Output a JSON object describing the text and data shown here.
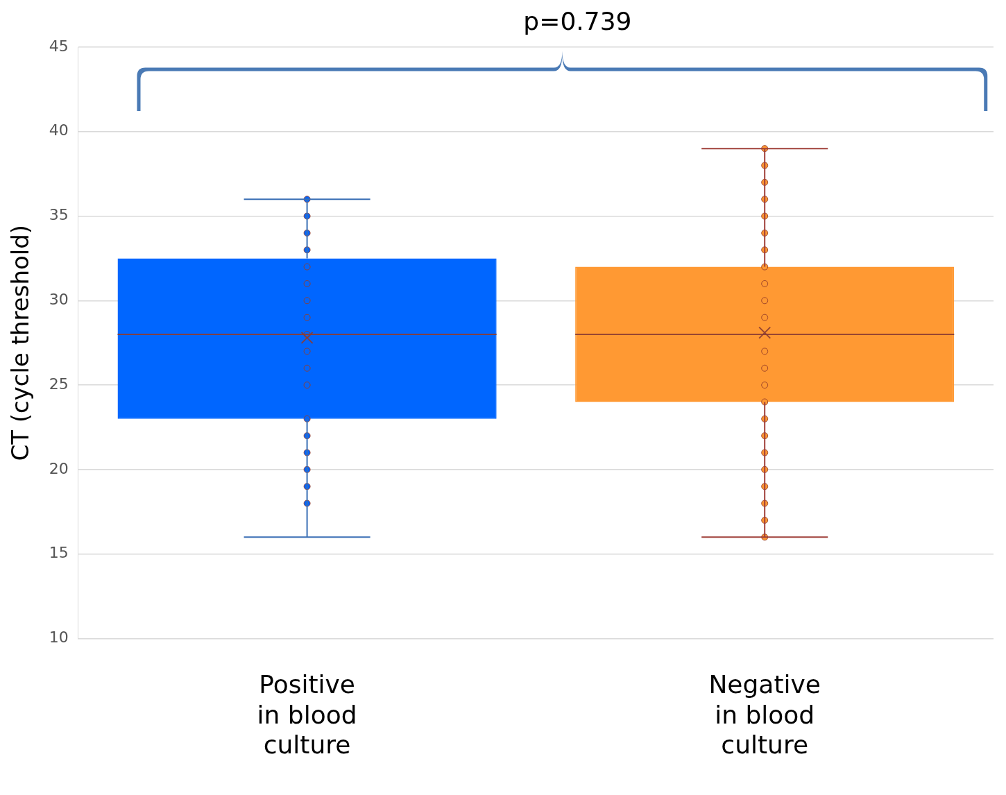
{
  "chart_data": {
    "type": "box",
    "ylabel": "CT (cycle threshold)",
    "categories": [
      "Positive in blood culture",
      "Negative in blood culture"
    ],
    "boxes": [
      {
        "low": 16,
        "q1": 23,
        "median": 28,
        "q3": 32.5,
        "high": 36,
        "mean": 27.8
      },
      {
        "low": 16,
        "q1": 24,
        "median": 28,
        "q3": 32,
        "high": 39,
        "mean": 28.1
      }
    ],
    "colors": [
      "#0066ff",
      "#ff9933"
    ],
    "series": [
      {
        "type": "scatter",
        "color": "#0066ff",
        "x": [
          "Positive in blood culture",
          "Positive in blood culture",
          "Positive in blood culture",
          "Positive in blood culture",
          "Positive in blood culture",
          "Positive in blood culture",
          "Positive in blood culture",
          "Positive in blood culture",
          "Positive in blood culture",
          "Positive in blood culture",
          "Positive in blood culture",
          "Positive in blood culture",
          "Positive in blood culture",
          "Positive in blood culture",
          "Positive in blood culture",
          "Positive in blood culture",
          "Positive in blood culture",
          "Positive in blood culture"
        ],
        "values": [
          36,
          35,
          34,
          33,
          32,
          31,
          30,
          29,
          28,
          27,
          26,
          25,
          23,
          22,
          21,
          20,
          19,
          18
        ]
      },
      {
        "type": "scatter",
        "color": "#ff9933",
        "x": [
          "Negative in blood culture",
          "Negative in blood culture",
          "Negative in blood culture",
          "Negative in blood culture",
          "Negative in blood culture",
          "Negative in blood culture",
          "Negative in blood culture",
          "Negative in blood culture",
          "Negative in blood culture",
          "Negative in blood culture",
          "Negative in blood culture",
          "Negative in blood culture",
          "Negative in blood culture",
          "Negative in blood culture",
          "Negative in blood culture",
          "Negative in blood culture",
          "Negative in blood culture",
          "Negative in blood culture",
          "Negative in blood culture",
          "Negative in blood culture",
          "Negative in blood culture",
          "Negative in blood culture",
          "Negative in blood culture"
        ],
        "values": [
          39,
          38,
          37,
          36,
          35,
          34,
          33,
          32,
          31,
          30,
          29,
          27,
          26,
          25,
          24,
          23,
          22,
          21,
          20,
          19,
          18,
          17,
          16
        ]
      }
    ],
    "ylim": [
      10,
      45
    ],
    "yticks": [
      10,
      15,
      20,
      25,
      30,
      35,
      40,
      45
    ],
    "grid": "y",
    "legend": false,
    "marker": "circle",
    "annotations": [
      "p=0.739"
    ]
  }
}
